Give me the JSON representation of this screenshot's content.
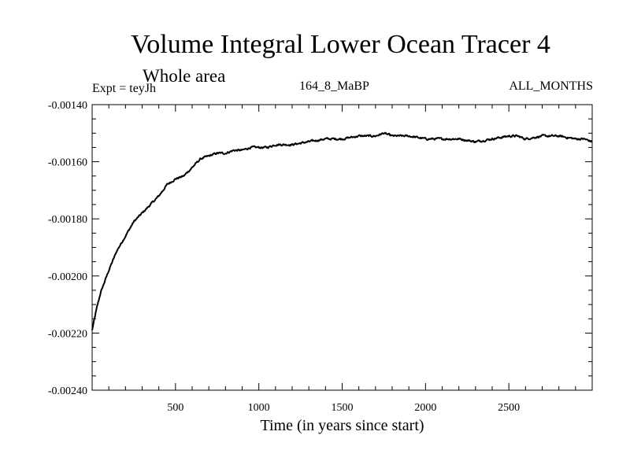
{
  "chart_data": {
    "type": "line",
    "title": "Volume Integral Lower Ocean Tracer 4",
    "subtitle": "Whole area",
    "experiment_label": "Expt = teyJh",
    "run_label": "164_8_MaBP",
    "period_label": "ALL_MONTHS",
    "xlabel": "Time (in years since start)",
    "ylabel": "",
    "xlim": [
      0,
      3000
    ],
    "ylim": [
      -0.0024,
      -0.0014
    ],
    "x_ticks": [
      500,
      1000,
      1500,
      2000,
      2500
    ],
    "x_tick_labels": [
      "500",
      "1000",
      "1500",
      "2000",
      "2500"
    ],
    "y_ticks": [
      -0.0024,
      -0.0022,
      -0.002,
      -0.0018,
      -0.0016,
      -0.0014
    ],
    "y_tick_labels": [
      "-0.00240",
      "-0.00220",
      "-0.00200",
      "-0.00180",
      "-0.00160",
      "-0.00140"
    ],
    "grid": false,
    "series": [
      {
        "name": "Volume Integral Lower Ocean Tracer 4",
        "x": [
          0,
          25,
          50,
          75,
          100,
          150,
          200,
          250,
          300,
          350,
          400,
          450,
          500,
          550,
          600,
          650,
          700,
          750,
          800,
          850,
          900,
          950,
          1000,
          1050,
          1100,
          1150,
          1200,
          1300,
          1400,
          1500,
          1600,
          1700,
          1750,
          1800,
          1900,
          2000,
          2100,
          2200,
          2300,
          2400,
          2500,
          2550,
          2600,
          2700,
          2800,
          2900,
          2950,
          3000
        ],
        "values": [
          -0.00219,
          -0.00212,
          -0.00206,
          -0.00202,
          -0.00198,
          -0.00191,
          -0.00186,
          -0.00181,
          -0.00178,
          -0.00175,
          -0.00172,
          -0.00168,
          -0.00166,
          -0.00165,
          -0.00162,
          -0.00159,
          -0.00158,
          -0.00157,
          -0.00157,
          -0.00156,
          -0.00156,
          -0.00155,
          -0.00155,
          -0.00155,
          -0.00154,
          -0.00154,
          -0.00154,
          -0.00153,
          -0.00152,
          -0.00152,
          -0.00151,
          -0.00151,
          -0.0015,
          -0.00151,
          -0.00151,
          -0.00152,
          -0.00152,
          -0.00152,
          -0.00153,
          -0.00152,
          -0.00151,
          -0.00151,
          -0.00152,
          -0.00151,
          -0.00151,
          -0.00152,
          -0.00152,
          -0.00153
        ]
      }
    ]
  }
}
